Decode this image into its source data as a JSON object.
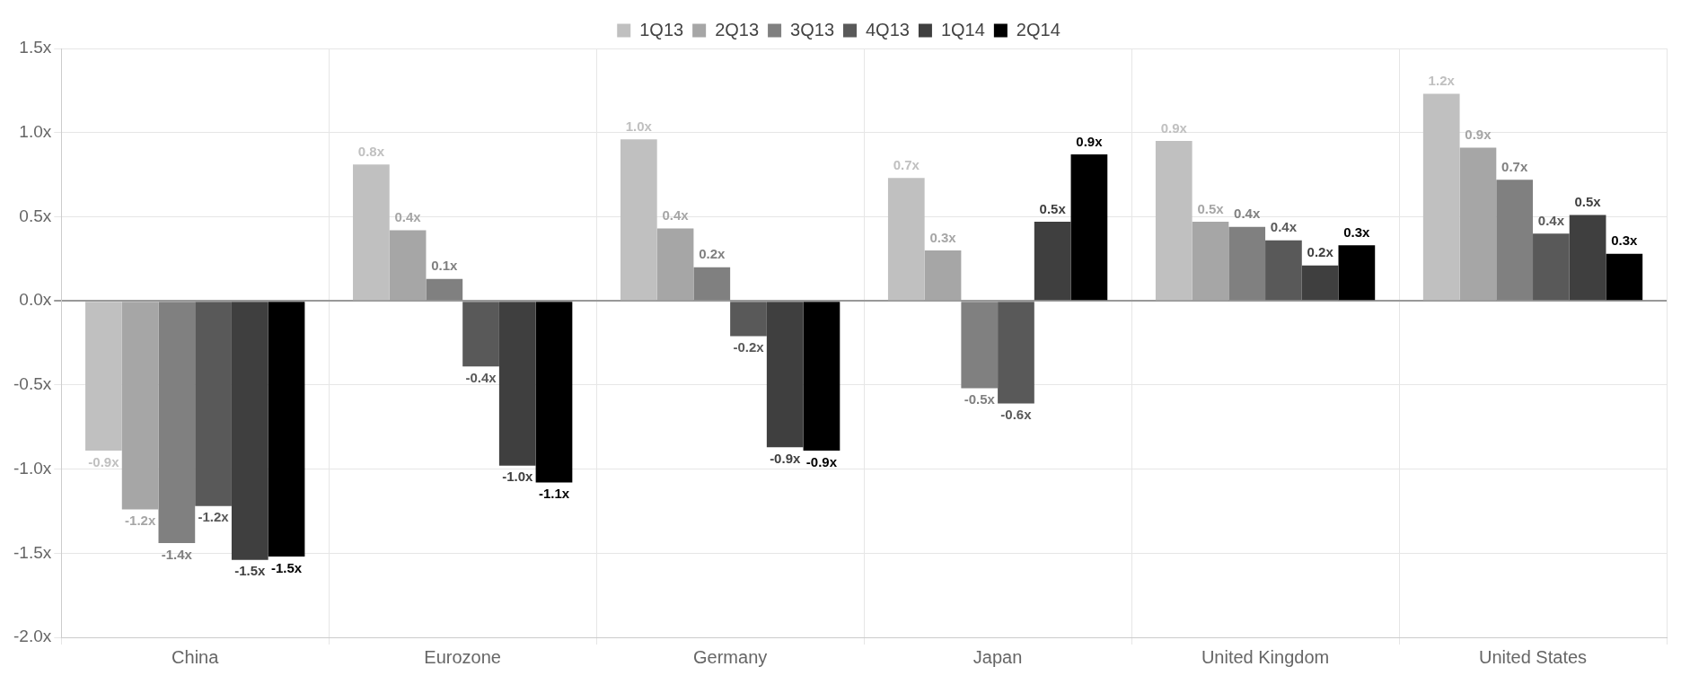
{
  "chart_data": {
    "type": "bar",
    "categories": [
      "China",
      "Eurozone",
      "Germany",
      "Japan",
      "United Kingdom",
      "United States"
    ],
    "series": [
      {
        "name": "1Q13",
        "color": "#c0c0c0",
        "values": [
          -0.89,
          0.81,
          0.96,
          0.73,
          0.95,
          1.23
        ],
        "value_labels": [
          "-0.9x",
          "0.8x",
          "1.0x",
          "0.7x",
          "0.9x",
          "1.2x"
        ]
      },
      {
        "name": "2Q13",
        "color": "#a6a6a6",
        "values": [
          -1.24,
          0.42,
          0.43,
          0.3,
          0.47,
          0.91
        ],
        "value_labels": [
          "-1.2x",
          "0.4x",
          "0.4x",
          "0.3x",
          "0.5x",
          "0.9x"
        ]
      },
      {
        "name": "3Q13",
        "color": "#808080",
        "values": [
          -1.44,
          0.13,
          0.2,
          -0.52,
          0.44,
          0.72
        ],
        "value_labels": [
          "-1.4x",
          "0.1x",
          "0.2x",
          "-0.5x",
          "0.4x",
          "0.7x"
        ]
      },
      {
        "name": "4Q13",
        "color": "#595959",
        "values": [
          -1.22,
          -0.39,
          -0.21,
          -0.61,
          0.36,
          0.4
        ],
        "value_labels": [
          "-1.2x",
          "-0.4x",
          "-0.2x",
          "-0.6x",
          "0.4x",
          "0.4x"
        ]
      },
      {
        "name": "1Q14",
        "color": "#3f3f3f",
        "values": [
          -1.54,
          -0.98,
          -0.87,
          0.47,
          0.21,
          0.51
        ],
        "value_labels": [
          "-1.5x",
          "-1.0x",
          "-0.9x",
          "0.5x",
          "0.2x",
          "0.5x"
        ]
      },
      {
        "name": "2Q14",
        "color": "#000000",
        "values": [
          -1.52,
          -1.08,
          -0.89,
          0.87,
          0.33,
          0.28
        ],
        "value_labels": [
          "-1.5x",
          "-1.1x",
          "-0.9x",
          "0.9x",
          "0.3x",
          "0.3x"
        ]
      }
    ],
    "ylim": [
      -2.0,
      1.5
    ],
    "yticks": [
      {
        "value": -2.0,
        "label": "-2.0x"
      },
      {
        "value": -1.5,
        "label": "-1.5x"
      },
      {
        "value": -1.0,
        "label": "-1.0x"
      },
      {
        "value": -0.5,
        "label": "-0.5x"
      },
      {
        "value": 0.0,
        "label": "0.0x"
      },
      {
        "value": 0.5,
        "label": "0.5x"
      },
      {
        "value": 1.0,
        "label": "1.0x"
      },
      {
        "value": 1.5,
        "label": "1.5x"
      }
    ],
    "grid": true,
    "legend": "top"
  }
}
